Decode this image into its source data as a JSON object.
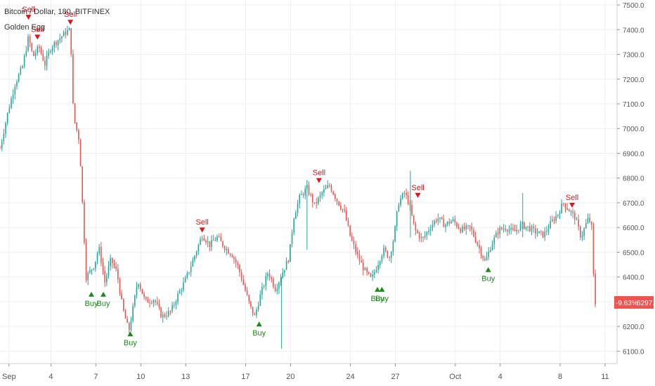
{
  "title": "Bitcoin / Dollar, 180, BITFINEX",
  "indicator": "Golden Egg",
  "price_badge": {
    "change": "-9.63%",
    "price": "6297.3",
    "color": "#ef5350"
  },
  "colors": {
    "up": "#26a69a",
    "down": "#ef5350",
    "buy": "#1b8a1b",
    "sell": "#e0131a",
    "grid": "#eceff2",
    "axis_text": "#555555"
  },
  "chart_data": {
    "type": "candlestick",
    "title": "Bitcoin / Dollar, 180, BITFINEX",
    "ylim": [
      6050,
      7520
    ],
    "y_ticks": [
      "6100.0",
      "6200.0",
      "6300.0",
      "6400.0",
      "6500.0",
      "6600.0",
      "6700.0",
      "6800.0",
      "6900.0",
      "7000.0",
      "7100.0",
      "7200.0",
      "7300.0",
      "7400.0",
      "7500.0"
    ],
    "x_ticks": [
      {
        "label": "Sep",
        "day": 0.6
      },
      {
        "label": "4",
        "day": 3.4
      },
      {
        "label": "7",
        "day": 6.4
      },
      {
        "label": "10",
        "day": 9.4
      },
      {
        "label": "13",
        "day": 12.4
      },
      {
        "label": "17",
        "day": 16.4
      },
      {
        "label": "20",
        "day": 19.4
      },
      {
        "label": "24",
        "day": 23.4
      },
      {
        "label": "27",
        "day": 26.4
      },
      {
        "label": "Oct",
        "day": 30.4
      },
      {
        "label": "4",
        "day": 33.4
      },
      {
        "label": "8",
        "day": 37.4
      },
      {
        "label": "11",
        "day": 40.4
      }
    ],
    "anchors": [
      [
        0.0,
        6920
      ],
      [
        0.5,
        7060
      ],
      [
        1.0,
        7180
      ],
      [
        1.5,
        7250
      ],
      [
        1.9,
        7370
      ],
      [
        2.2,
        7290
      ],
      [
        2.6,
        7330
      ],
      [
        3.0,
        7260
      ],
      [
        3.4,
        7330
      ],
      [
        3.9,
        7360
      ],
      [
        4.4,
        7390
      ],
      [
        4.7,
        7400
      ],
      [
        4.9,
        7050
      ],
      [
        5.3,
        6950
      ],
      [
        5.5,
        6700
      ],
      [
        5.75,
        6400
      ],
      [
        6.3,
        6450
      ],
      [
        6.6,
        6520
      ],
      [
        7.0,
        6380
      ],
      [
        7.4,
        6470
      ],
      [
        7.8,
        6420
      ],
      [
        8.2,
        6270
      ],
      [
        8.6,
        6180
      ],
      [
        8.9,
        6280
      ],
      [
        9.2,
        6390
      ],
      [
        9.7,
        6300
      ],
      [
        10.3,
        6310
      ],
      [
        10.8,
        6240
      ],
      [
        11.4,
        6260
      ],
      [
        11.9,
        6330
      ],
      [
        12.4,
        6390
      ],
      [
        12.9,
        6470
      ],
      [
        13.5,
        6570
      ],
      [
        14.0,
        6530
      ],
      [
        14.5,
        6560
      ],
      [
        15.0,
        6520
      ],
      [
        15.5,
        6490
      ],
      [
        15.9,
        6440
      ],
      [
        16.3,
        6360
      ],
      [
        16.7,
        6280
      ],
      [
        17.0,
        6240
      ],
      [
        17.4,
        6330
      ],
      [
        17.9,
        6420
      ],
      [
        18.4,
        6350
      ],
      [
        18.8,
        6410
      ],
      [
        19.3,
        6480
      ],
      [
        19.6,
        6640
      ],
      [
        20.0,
        6720
      ],
      [
        20.5,
        6760
      ],
      [
        21.0,
        6690
      ],
      [
        21.5,
        6740
      ],
      [
        22.0,
        6770
      ],
      [
        22.5,
        6710
      ],
      [
        23.0,
        6660
      ],
      [
        23.4,
        6560
      ],
      [
        23.9,
        6480
      ],
      [
        24.4,
        6420
      ],
      [
        24.8,
        6390
      ],
      [
        25.2,
        6450
      ],
      [
        25.6,
        6510
      ],
      [
        26.0,
        6480
      ],
      [
        26.3,
        6560
      ],
      [
        26.6,
        6700
      ],
      [
        27.0,
        6740
      ],
      [
        27.3,
        6700
      ],
      [
        27.7,
        6590
      ],
      [
        28.2,
        6550
      ],
      [
        28.7,
        6600
      ],
      [
        29.2,
        6640
      ],
      [
        29.7,
        6610
      ],
      [
        30.2,
        6630
      ],
      [
        30.8,
        6590
      ],
      [
        31.4,
        6600
      ],
      [
        31.9,
        6530
      ],
      [
        32.4,
        6460
      ],
      [
        32.8,
        6530
      ],
      [
        33.3,
        6590
      ],
      [
        33.8,
        6600
      ],
      [
        34.3,
        6580
      ],
      [
        34.8,
        6610
      ],
      [
        35.3,
        6600
      ],
      [
        35.8,
        6580
      ],
      [
        36.3,
        6570
      ],
      [
        36.8,
        6620
      ],
      [
        37.3,
        6660
      ],
      [
        37.6,
        6700
      ],
      [
        38.0,
        6670
      ],
      [
        38.4,
        6640
      ],
      [
        38.8,
        6560
      ],
      [
        39.1,
        6610
      ],
      [
        39.3,
        6640
      ],
      [
        39.5,
        6600
      ],
      [
        39.7,
        6290
      ],
      [
        39.85,
        6297
      ]
    ],
    "spikes": [
      {
        "day": 18.8,
        "low": 6110,
        "high": 6400
      },
      {
        "day": 20.5,
        "low": 6510,
        "high": 6790
      },
      {
        "day": 27.4,
        "low": 6560,
        "high": 6830
      },
      {
        "day": 34.9,
        "low": 6560,
        "high": 6740
      }
    ],
    "signals": [
      {
        "type": "sell",
        "label": "Sell",
        "day": 1.9,
        "price": 7460
      },
      {
        "type": "sell",
        "label": "Sell",
        "day": 2.5,
        "price": 7380
      },
      {
        "type": "sell",
        "label": "Sell",
        "day": 4.7,
        "price": 7440
      },
      {
        "type": "buy",
        "label": "Buy",
        "day": 6.1,
        "price": 6340
      },
      {
        "type": "buy",
        "label": "Buy",
        "day": 6.9,
        "price": 6340
      },
      {
        "type": "buy",
        "label": "Buy",
        "day": 8.7,
        "price": 6180
      },
      {
        "type": "sell",
        "label": "Sell",
        "day": 13.5,
        "price": 6600
      },
      {
        "type": "buy",
        "label": "Buy",
        "day": 17.3,
        "price": 6220
      },
      {
        "type": "sell",
        "label": "Sell",
        "day": 21.3,
        "price": 6800
      },
      {
        "type": "buy",
        "label": "Buy",
        "day": 25.2,
        "price": 6360
      },
      {
        "type": "buy",
        "label": "Buy",
        "day": 25.5,
        "price": 6360
      },
      {
        "type": "sell",
        "label": "Sell",
        "day": 27.9,
        "price": 6740
      },
      {
        "type": "buy",
        "label": "Buy",
        "day": 32.6,
        "price": 6440
      },
      {
        "type": "sell",
        "label": "Sell",
        "day": 38.2,
        "price": 6700
      }
    ],
    "x_range_days": [
      0,
      41.2
    ],
    "last_price": 6297.3
  }
}
